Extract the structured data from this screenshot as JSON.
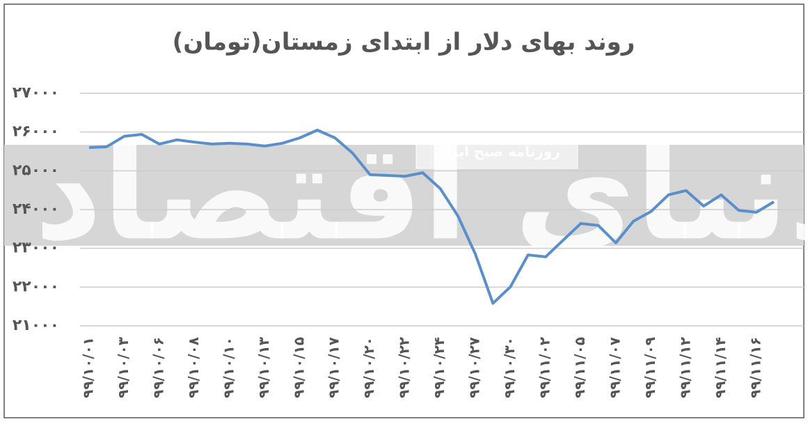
{
  "chart_data": {
    "type": "line",
    "title": "روند بهای دلار از ابتدای زمستان(تومان)",
    "watermark": "دنیای اقتصاد",
    "banner": "روزنامه صبح ایران",
    "categories": [
      "۹۹/۱۰/۰۱",
      null,
      "۹۹/۱۰/۰۳",
      null,
      "۹۹/۱۰/۰۶",
      null,
      "۹۹/۱۰/۰۸",
      null,
      "۹۹/۱۰/۱۰",
      null,
      "۹۹/۱۰/۱۳",
      null,
      "۹۹/۱۰/۱۵",
      null,
      "۹۹/۱۰/۱۷",
      null,
      "۹۹/۱۰/۲۰",
      null,
      "۹۹/۱۰/۲۲",
      null,
      "۹۹/۱۰/۲۴",
      null,
      "۹۹/۱۰/۲۷",
      null,
      "۹۹/۱۰/۳۰",
      null,
      "۹۹/۱۱/۰۲",
      null,
      "۹۹/۱۱/۰۵",
      null,
      "۹۹/۱۱/۰۷",
      null,
      "۹۹/۱۱/۰۹",
      null,
      "۹۹/۱۱/۱۲",
      null,
      "۹۹/۱۱/۱۴",
      null,
      "۹۹/۱۱/۱۶",
      null
    ],
    "values": [
      25600,
      25620,
      25890,
      25940,
      25690,
      25800,
      25740,
      25690,
      25710,
      25690,
      25640,
      25710,
      25850,
      26050,
      25850,
      25460,
      24900,
      24880,
      24860,
      24950,
      24540,
      23840,
      22850,
      21580,
      22010,
      22830,
      22780,
      23210,
      23640,
      23590,
      23140,
      23700,
      23950,
      24380,
      24490,
      24090,
      24380,
      23980,
      23930,
      24200
    ],
    "color": "#5b8fc9",
    "ylim": [
      21000,
      27000
    ],
    "yticks": [
      {
        "value": 21000,
        "label": "۲۱۰۰۰"
      },
      {
        "value": 22000,
        "label": "۲۲۰۰۰"
      },
      {
        "value": 23000,
        "label": "۲۳۰۰۰"
      },
      {
        "value": 24000,
        "label": "۲۴۰۰۰"
      },
      {
        "value": 25000,
        "label": "۲۵۰۰۰"
      },
      {
        "value": 26000,
        "label": "۲۶۰۰۰"
      },
      {
        "value": 27000,
        "label": "۲۷۰۰۰"
      }
    ],
    "grid": true
  }
}
